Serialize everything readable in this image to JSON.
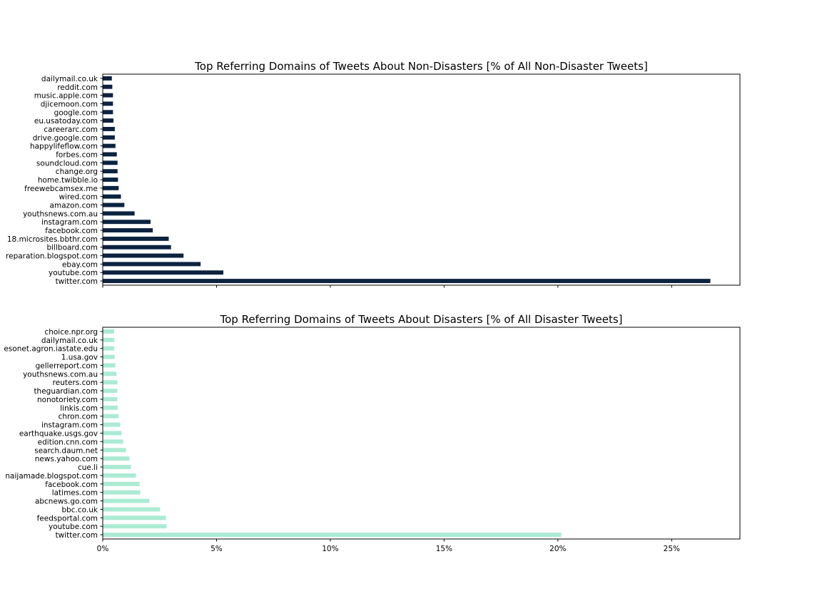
{
  "chart_data": [
    {
      "type": "bar",
      "orientation": "horizontal",
      "title": "Top Referring Domains of Tweets About Non-Disasters [% of All Non-Disaster Tweets]",
      "color": "#0c2340",
      "categories": [
        "twitter.com",
        "youtube.com",
        "ebay.com",
        "reparation.blogspot.com",
        "billboard.com",
        "18.microsites.bbthr.com",
        "facebook.com",
        "instagram.com",
        "youthsnews.com.au",
        "amazon.com",
        "wired.com",
        "freewebcamsex.me",
        "home.twibble.io",
        "change.org",
        "soundcloud.com",
        "forbes.com",
        "happylifeflow.com",
        "drive.google.com",
        "careerarc.com",
        "eu.usatoday.com",
        "google.com",
        "djicemoon.com",
        "music.apple.com",
        "reddit.com",
        "dailymail.co.uk"
      ],
      "values": [
        26.7,
        5.3,
        4.3,
        3.55,
        3.0,
        2.9,
        2.2,
        2.1,
        1.4,
        0.95,
        0.8,
        0.7,
        0.67,
        0.65,
        0.65,
        0.62,
        0.56,
        0.53,
        0.53,
        0.47,
        0.45,
        0.45,
        0.45,
        0.42,
        0.4
      ],
      "xlim": [
        0,
        28
      ],
      "xticks": [
        0,
        5,
        10,
        15,
        20,
        25
      ],
      "xtick_labels": []
    },
    {
      "type": "bar",
      "orientation": "horizontal",
      "title": "Top Referring Domains of Tweets About Disasters [% of All Disaster Tweets]",
      "color": "#abebd3",
      "categories": [
        "twitter.com",
        "youtube.com",
        "feedsportal.com",
        "bbc.co.uk",
        "abcnews.go.com",
        "latimes.com",
        "facebook.com",
        "naijamade.blogspot.com",
        "cue.li",
        "news.yahoo.com",
        "search.daum.net",
        "edition.cnn.com",
        "earthquake.usgs.gov",
        "instagram.com",
        "chron.com",
        "linkis.com",
        "nonotoriety.com",
        "theguardian.com",
        "reuters.com",
        "youthsnews.com.au",
        "gellerreport.com",
        "1.usa.gov",
        "esonet.agron.iastate.edu",
        "dailymail.co.uk",
        "choice.npr.org"
      ],
      "values": [
        20.15,
        2.8,
        2.78,
        2.52,
        2.05,
        1.65,
        1.62,
        1.46,
        1.24,
        1.17,
        1.02,
        0.9,
        0.83,
        0.77,
        0.7,
        0.66,
        0.64,
        0.64,
        0.64,
        0.6,
        0.55,
        0.52,
        0.51,
        0.51,
        0.5
      ],
      "xlim": [
        0,
        28
      ],
      "xticks": [
        0,
        5,
        10,
        15,
        20,
        25
      ],
      "xtick_labels": [
        "0%",
        "5%",
        "10%",
        "15%",
        "20%",
        "25%"
      ]
    }
  ]
}
